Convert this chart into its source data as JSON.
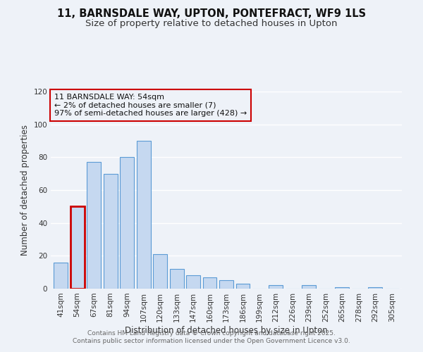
{
  "title_line1": "11, BARNSDALE WAY, UPTON, PONTEFRACT, WF9 1LS",
  "title_line2": "Size of property relative to detached houses in Upton",
  "xlabel": "Distribution of detached houses by size in Upton",
  "ylabel": "Number of detached properties",
  "categories": [
    "41sqm",
    "54sqm",
    "67sqm",
    "81sqm",
    "94sqm",
    "107sqm",
    "120sqm",
    "133sqm",
    "147sqm",
    "160sqm",
    "173sqm",
    "186sqm",
    "199sqm",
    "212sqm",
    "226sqm",
    "239sqm",
    "252sqm",
    "265sqm",
    "278sqm",
    "292sqm",
    "305sqm"
  ],
  "values": [
    16,
    50,
    77,
    70,
    80,
    90,
    21,
    12,
    8,
    7,
    5,
    3,
    0,
    2,
    0,
    2,
    0,
    1,
    0,
    1,
    0
  ],
  "bar_color": "#c5d8f0",
  "bar_edge_color": "#5b9bd5",
  "highlight_bar_index": 1,
  "highlight_edge_color": "#cc0000",
  "ylim": [
    0,
    120
  ],
  "yticks": [
    0,
    20,
    40,
    60,
    80,
    100,
    120
  ],
  "annotation_line1": "11 BARNSDALE WAY: 54sqm",
  "annotation_line2": "← 2% of detached houses are smaller (7)",
  "annotation_line3": "97% of semi-detached houses are larger (428) →",
  "annotation_box_color": "#cc0000",
  "footer_line1": "Contains HM Land Registry data © Crown copyright and database right 2025.",
  "footer_line2": "Contains public sector information licensed under the Open Government Licence v3.0.",
  "background_color": "#eef2f8",
  "plot_bg_color": "#eef2f8",
  "grid_color": "#ffffff",
  "title_fontsize": 10.5,
  "subtitle_fontsize": 9.5,
  "axis_label_fontsize": 8.5,
  "tick_fontsize": 7.5,
  "annotation_fontsize": 8,
  "footer_fontsize": 6.5
}
